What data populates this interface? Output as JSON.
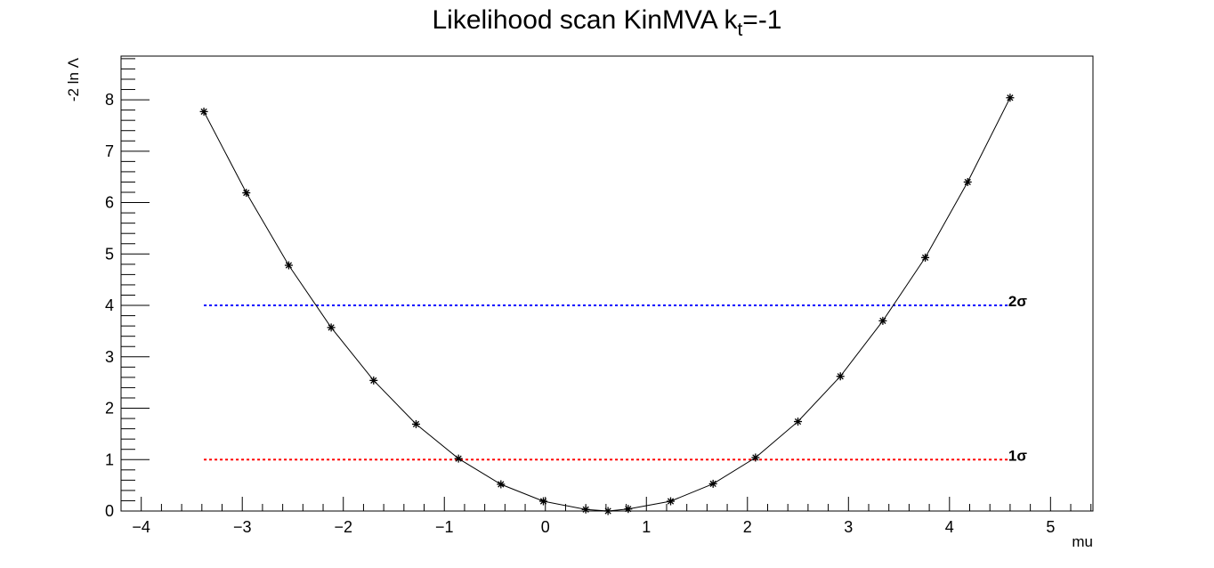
{
  "chart_data": {
    "type": "line",
    "title": "Likelihood scan KinMVA k",
    "title_subscript": "t",
    "title_suffix": "=-1",
    "xlabel": "mu",
    "ylabel": "-2 ln Λ",
    "xlim": [
      -4.2,
      5.42
    ],
    "ylim": [
      0,
      8.85
    ],
    "x_ticks": [
      -4,
      -3,
      -2,
      -1,
      0,
      1,
      2,
      3,
      4,
      5
    ],
    "x_tick_labels": [
      "−4",
      "−3",
      "−2",
      "−1",
      "0",
      "1",
      "2",
      "3",
      "4",
      "5"
    ],
    "y_ticks": [
      0,
      1,
      2,
      3,
      4,
      5,
      6,
      7,
      8
    ],
    "y_tick_labels": [
      "0",
      "1",
      "2",
      "3",
      "4",
      "5",
      "6",
      "7",
      "8"
    ],
    "grid": false,
    "series": [
      {
        "marker": "star",
        "color": "#000000",
        "x": [
          -3.38,
          -2.96,
          -2.54,
          -2.12,
          -1.7,
          -1.28,
          -0.86,
          -0.44,
          -0.02,
          0.4,
          0.62,
          0.82,
          1.24,
          1.66,
          2.08,
          2.5,
          2.92,
          3.34,
          3.76,
          4.18,
          4.6
        ],
        "y": [
          7.77,
          6.19,
          4.78,
          3.57,
          2.54,
          1.69,
          1.02,
          0.52,
          0.19,
          0.03,
          0.0,
          0.04,
          0.19,
          0.53,
          1.04,
          1.74,
          2.62,
          3.7,
          4.93,
          6.4,
          8.04
        ]
      }
    ],
    "reference_lines": [
      {
        "label": "1σ",
        "y": 1,
        "x_from": -3.38,
        "x_to": 4.6,
        "color": "#ff0000"
      },
      {
        "label": "2σ",
        "y": 4,
        "x_from": -3.38,
        "x_to": 4.6,
        "color": "#0000ff"
      }
    ]
  }
}
